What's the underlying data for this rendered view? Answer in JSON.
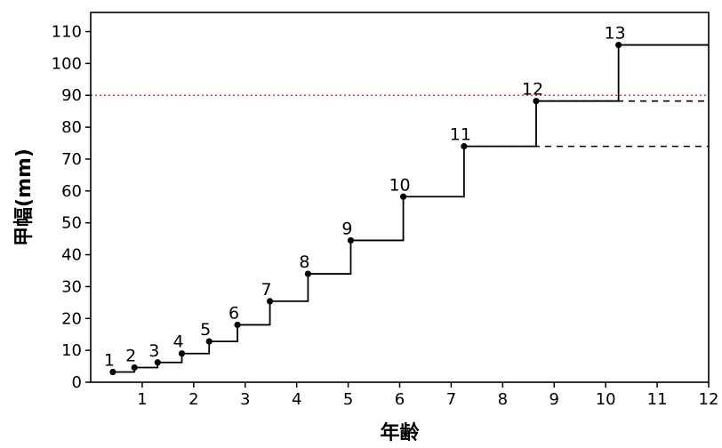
{
  "chart_data": {
    "type": "line",
    "title": "",
    "xlabel": "年齢",
    "ylabel": "甲幅(mm)",
    "xlim": [
      0.0,
      12.0
    ],
    "ylim": [
      0,
      116
    ],
    "x_ticks": [
      1,
      2,
      3,
      4,
      5,
      6,
      7,
      8,
      9,
      10,
      11,
      12
    ],
    "y_ticks": [
      0,
      10,
      20,
      30,
      40,
      50,
      60,
      70,
      80,
      90,
      100,
      110
    ],
    "grid": false,
    "legend": "none",
    "reference_line": {
      "y": 90,
      "color": "#e8343a",
      "style": "dotted"
    },
    "step_color": "#000000",
    "dashed_extensions": [
      {
        "from_x": 8.65,
        "to_x": 12.0,
        "y": 88.2
      },
      {
        "from_x": 7.25,
        "to_x": 12.0,
        "y": 74.0
      }
    ],
    "end_x": 12.0,
    "points": [
      {
        "label": "1",
        "x": 0.43,
        "y": 3.2
      },
      {
        "label": "2",
        "x": 0.85,
        "y": 4.6
      },
      {
        "label": "3",
        "x": 1.3,
        "y": 6.2
      },
      {
        "label": "4",
        "x": 1.77,
        "y": 9.0
      },
      {
        "label": "5",
        "x": 2.3,
        "y": 12.8
      },
      {
        "label": "6",
        "x": 2.85,
        "y": 18.0
      },
      {
        "label": "7",
        "x": 3.48,
        "y": 25.4
      },
      {
        "label": "8",
        "x": 4.22,
        "y": 34.0
      },
      {
        "label": "9",
        "x": 5.05,
        "y": 44.5
      },
      {
        "label": "10",
        "x": 6.07,
        "y": 58.2
      },
      {
        "label": "11",
        "x": 7.25,
        "y": 74.0
      },
      {
        "label": "12",
        "x": 8.65,
        "y": 88.2
      },
      {
        "label": "13",
        "x": 10.25,
        "y": 105.8
      }
    ]
  }
}
